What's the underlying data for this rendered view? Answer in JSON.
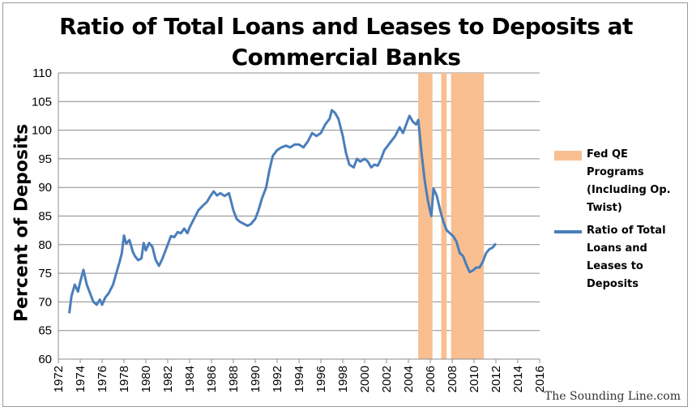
{
  "chart_data": {
    "type": "line",
    "title_line1": "Ratio of Total Loans and Leases to Deposits at",
    "title_line2": "Commercial Banks",
    "ylabel": "Percent of Deposits",
    "xlabel": "",
    "ylim": [
      60,
      110
    ],
    "yticks": [
      60,
      65,
      70,
      75,
      80,
      85,
      90,
      95,
      100,
      105,
      110
    ],
    "xlim": [
      1972,
      2016
    ],
    "xticks": [
      1972,
      1974,
      1976,
      1978,
      1980,
      1982,
      1984,
      1986,
      1988,
      1990,
      1992,
      1994,
      1996,
      1998,
      2000,
      2002,
      2004,
      2006,
      2008,
      2010,
      2012,
      2014,
      2016
    ],
    "grid": "horizontal",
    "legend_position": "right",
    "series": [
      {
        "name": "Ratio of Total Loans and Leases to Deposits",
        "color": "#4A7EBB",
        "points": [
          [
            1973.0,
            68.0
          ],
          [
            1973.2,
            71.0
          ],
          [
            1973.5,
            73.0
          ],
          [
            1973.8,
            71.8
          ],
          [
            1974.0,
            73.5
          ],
          [
            1974.3,
            75.6
          ],
          [
            1974.6,
            73.0
          ],
          [
            1974.9,
            71.5
          ],
          [
            1975.2,
            70.0
          ],
          [
            1975.5,
            69.5
          ],
          [
            1975.8,
            70.4
          ],
          [
            1976.0,
            69.5
          ],
          [
            1976.3,
            70.8
          ],
          [
            1976.6,
            71.5
          ],
          [
            1977.0,
            73.0
          ],
          [
            1977.3,
            75.0
          ],
          [
            1977.6,
            77.0
          ],
          [
            1977.8,
            78.5
          ],
          [
            1978.0,
            81.6
          ],
          [
            1978.2,
            80.2
          ],
          [
            1978.5,
            80.8
          ],
          [
            1978.8,
            78.8
          ],
          [
            1979.0,
            78.0
          ],
          [
            1979.3,
            77.3
          ],
          [
            1979.6,
            77.6
          ],
          [
            1979.8,
            80.3
          ],
          [
            1980.0,
            79.0
          ],
          [
            1980.3,
            80.3
          ],
          [
            1980.6,
            79.6
          ],
          [
            1980.9,
            77.3
          ],
          [
            1981.2,
            76.3
          ],
          [
            1981.5,
            77.5
          ],
          [
            1981.8,
            79.0
          ],
          [
            1982.0,
            80.0
          ],
          [
            1982.3,
            81.5
          ],
          [
            1982.6,
            81.3
          ],
          [
            1982.9,
            82.2
          ],
          [
            1983.2,
            82.0
          ],
          [
            1983.5,
            82.8
          ],
          [
            1983.8,
            82.0
          ],
          [
            1984.0,
            83.0
          ],
          [
            1984.4,
            84.5
          ],
          [
            1984.8,
            86.0
          ],
          [
            1985.2,
            86.8
          ],
          [
            1985.6,
            87.5
          ],
          [
            1985.9,
            88.5
          ],
          [
            1986.2,
            89.3
          ],
          [
            1986.5,
            88.6
          ],
          [
            1986.8,
            89.0
          ],
          [
            1987.2,
            88.5
          ],
          [
            1987.6,
            89.0
          ],
          [
            1988.0,
            86.0
          ],
          [
            1988.3,
            84.5
          ],
          [
            1988.6,
            84.0
          ],
          [
            1989.0,
            83.6
          ],
          [
            1989.3,
            83.3
          ],
          [
            1989.6,
            83.6
          ],
          [
            1990.0,
            84.5
          ],
          [
            1990.3,
            86.0
          ],
          [
            1990.6,
            88.0
          ],
          [
            1991.0,
            90.0
          ],
          [
            1991.3,
            93.0
          ],
          [
            1991.6,
            95.5
          ],
          [
            1992.0,
            96.5
          ],
          [
            1992.4,
            97.0
          ],
          [
            1992.8,
            97.3
          ],
          [
            1993.2,
            97.0
          ],
          [
            1993.6,
            97.5
          ],
          [
            1994.0,
            97.5
          ],
          [
            1994.4,
            97.0
          ],
          [
            1994.8,
            98.0
          ],
          [
            1995.2,
            99.5
          ],
          [
            1995.6,
            99.0
          ],
          [
            1996.0,
            99.5
          ],
          [
            1996.4,
            101.0
          ],
          [
            1996.8,
            102.0
          ],
          [
            1997.0,
            103.5
          ],
          [
            1997.3,
            103.0
          ],
          [
            1997.6,
            102.0
          ],
          [
            1998.0,
            99.0
          ],
          [
            1998.3,
            96.0
          ],
          [
            1998.6,
            94.0
          ],
          [
            1999.0,
            93.5
          ],
          [
            1999.3,
            95.0
          ],
          [
            1999.6,
            94.5
          ],
          [
            2000.0,
            95.0
          ],
          [
            2000.3,
            94.5
          ],
          [
            2000.6,
            93.5
          ],
          [
            2000.9,
            94.0
          ],
          [
            2001.2,
            93.8
          ],
          [
            2001.5,
            95.0
          ],
          [
            2001.8,
            96.5
          ],
          [
            2002.0,
            97.0
          ],
          [
            2002.4,
            98.0
          ],
          [
            2002.8,
            99.0
          ],
          [
            2003.2,
            100.5
          ],
          [
            2003.5,
            99.5
          ],
          [
            2003.8,
            101.0
          ],
          [
            2004.1,
            102.5
          ],
          [
            2004.4,
            101.5
          ],
          [
            2004.7,
            101.0
          ],
          [
            2004.9,
            101.8
          ],
          [
            2005.2,
            96.0
          ],
          [
            2005.5,
            91.0
          ],
          [
            2005.8,
            87.5
          ],
          [
            2006.1,
            85.0
          ],
          [
            2006.3,
            89.8
          ],
          [
            2006.6,
            88.5
          ],
          [
            2006.9,
            86.0
          ],
          [
            2007.2,
            84.0
          ],
          [
            2007.5,
            82.5
          ],
          [
            2007.8,
            82.0
          ],
          [
            2008.1,
            81.5
          ],
          [
            2008.4,
            80.5
          ],
          [
            2008.7,
            78.5
          ],
          [
            2009.0,
            78.0
          ],
          [
            2009.3,
            76.5
          ],
          [
            2009.6,
            75.2
          ],
          [
            2009.9,
            75.5
          ],
          [
            2010.2,
            76.0
          ],
          [
            2010.5,
            76.0
          ],
          [
            2010.8,
            77.0
          ],
          [
            2011.1,
            78.5
          ],
          [
            2011.4,
            79.2
          ],
          [
            2011.7,
            79.5
          ],
          [
            2012.0,
            80.2
          ]
        ]
      }
    ],
    "shaded": {
      "name": "Fed QE Programs (Including Op. Twist)",
      "color": "#F9BF90",
      "ranges": [
        [
          2004.9,
          2006.2
        ],
        [
          2007.0,
          2007.5
        ],
        [
          2007.9,
          2010.9
        ]
      ]
    }
  },
  "legend": {
    "qe_label_lines": [
      "Fed QE",
      "Programs",
      "(Including Op.",
      "Twist)"
    ],
    "ratio_label_lines": [
      "Ratio of Total",
      "Loans and",
      "Leases to",
      "Deposits"
    ]
  },
  "watermark": "The Sounding Line.com"
}
